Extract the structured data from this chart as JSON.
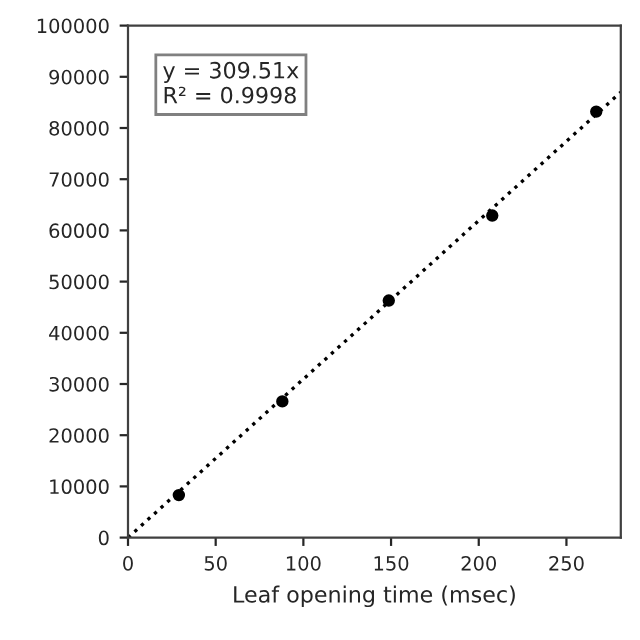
{
  "chart_data": {
    "type": "scatter",
    "xlabel": "Leaf opening time (msec)",
    "xlim": [
      0,
      281
    ],
    "xticks": [
      0,
      50,
      100,
      150,
      200,
      250
    ],
    "ylim": [
      0,
      100000
    ],
    "yticks": [
      0,
      10000,
      20000,
      30000,
      40000,
      50000,
      60000,
      70000,
      80000,
      90000,
      100000
    ],
    "series": [
      {
        "color": "#000000",
        "x": [
          29,
          88,
          148.7,
          207.7,
          267
        ],
        "values": [
          8300,
          26600,
          46300,
          62900,
          83200
        ],
        "marker": "circle"
      },
      {
        "type": "line",
        "color": "#000000",
        "x": [
          0,
          281
        ],
        "values": [
          0,
          87000
        ],
        "line_style": "dotted"
      }
    ],
    "annotations": [
      "y = 309.51x",
      "R² = 0.9998"
    ],
    "grid": false,
    "legend": false
  }
}
